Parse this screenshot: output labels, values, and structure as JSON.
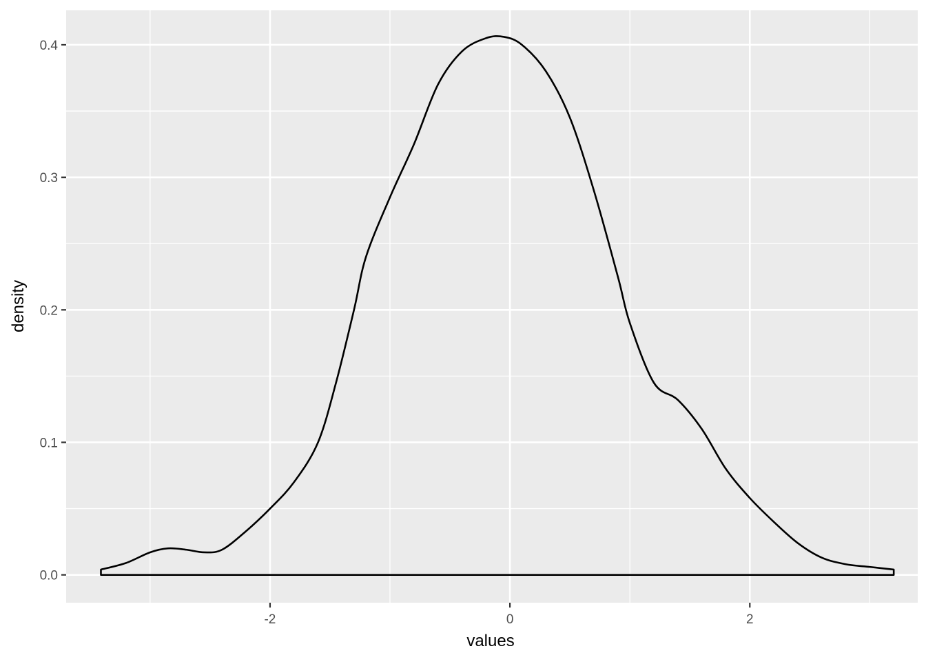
{
  "chart_data": {
    "type": "area",
    "title": "",
    "xlabel": "values",
    "ylabel": "density",
    "xlim": [
      -3.7,
      3.4
    ],
    "ylim": [
      -0.021,
      0.426
    ],
    "x_ticks": [
      -2,
      0,
      2
    ],
    "x_tick_labels": [
      "-2",
      "0",
      "2"
    ],
    "y_ticks": [
      0.0,
      0.1,
      0.2,
      0.3,
      0.4
    ],
    "y_tick_labels": [
      "0.0",
      "0.1",
      "0.2",
      "0.3",
      "0.4"
    ],
    "grid": true,
    "panel_background": "#ebebeb",
    "line_color": "#000000",
    "series": [
      {
        "x": [
          -3.41,
          -3.2,
          -3.0,
          -2.85,
          -2.7,
          -2.55,
          -2.4,
          -2.2,
          -2.0,
          -1.8,
          -1.6,
          -1.45,
          -1.3,
          -1.2,
          -1.0,
          -0.8,
          -0.6,
          -0.4,
          -0.2,
          -0.05,
          0.1,
          0.3,
          0.5,
          0.7,
          0.9,
          1.0,
          1.2,
          1.4,
          1.6,
          1.8,
          2.0,
          2.2,
          2.4,
          2.6,
          2.8,
          3.0,
          3.2
        ],
        "y": [
          0.004,
          0.009,
          0.017,
          0.02,
          0.019,
          0.017,
          0.019,
          0.033,
          0.05,
          0.07,
          0.1,
          0.145,
          0.2,
          0.24,
          0.285,
          0.325,
          0.37,
          0.395,
          0.405,
          0.406,
          0.4,
          0.38,
          0.345,
          0.29,
          0.225,
          0.19,
          0.145,
          0.132,
          0.11,
          0.08,
          0.058,
          0.04,
          0.024,
          0.013,
          0.008,
          0.006,
          0.004
        ]
      }
    ]
  }
}
